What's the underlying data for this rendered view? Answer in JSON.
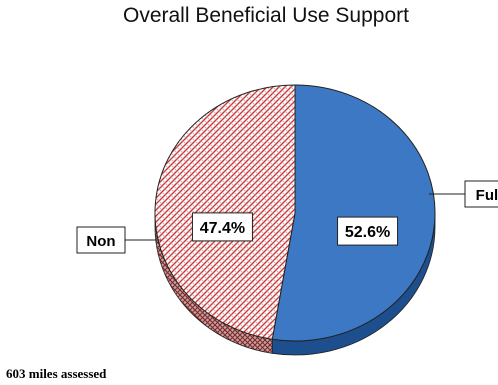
{
  "chart_data": {
    "type": "pie",
    "title": "Overall Beneficial Use Support",
    "slices": [
      {
        "label": "Full",
        "value": 52.6,
        "value_label": "52.6%",
        "color": "#3c78c3",
        "side_color": "#1d4f8f"
      },
      {
        "label": "Non",
        "value": 47.4,
        "value_label": "47.4%",
        "color": "#c43a3a",
        "side_color": "#8f3030"
      }
    ],
    "style": "3d-tilted",
    "non_slice_pattern": "red-white hatched"
  },
  "footnote": "603 miles assessed"
}
